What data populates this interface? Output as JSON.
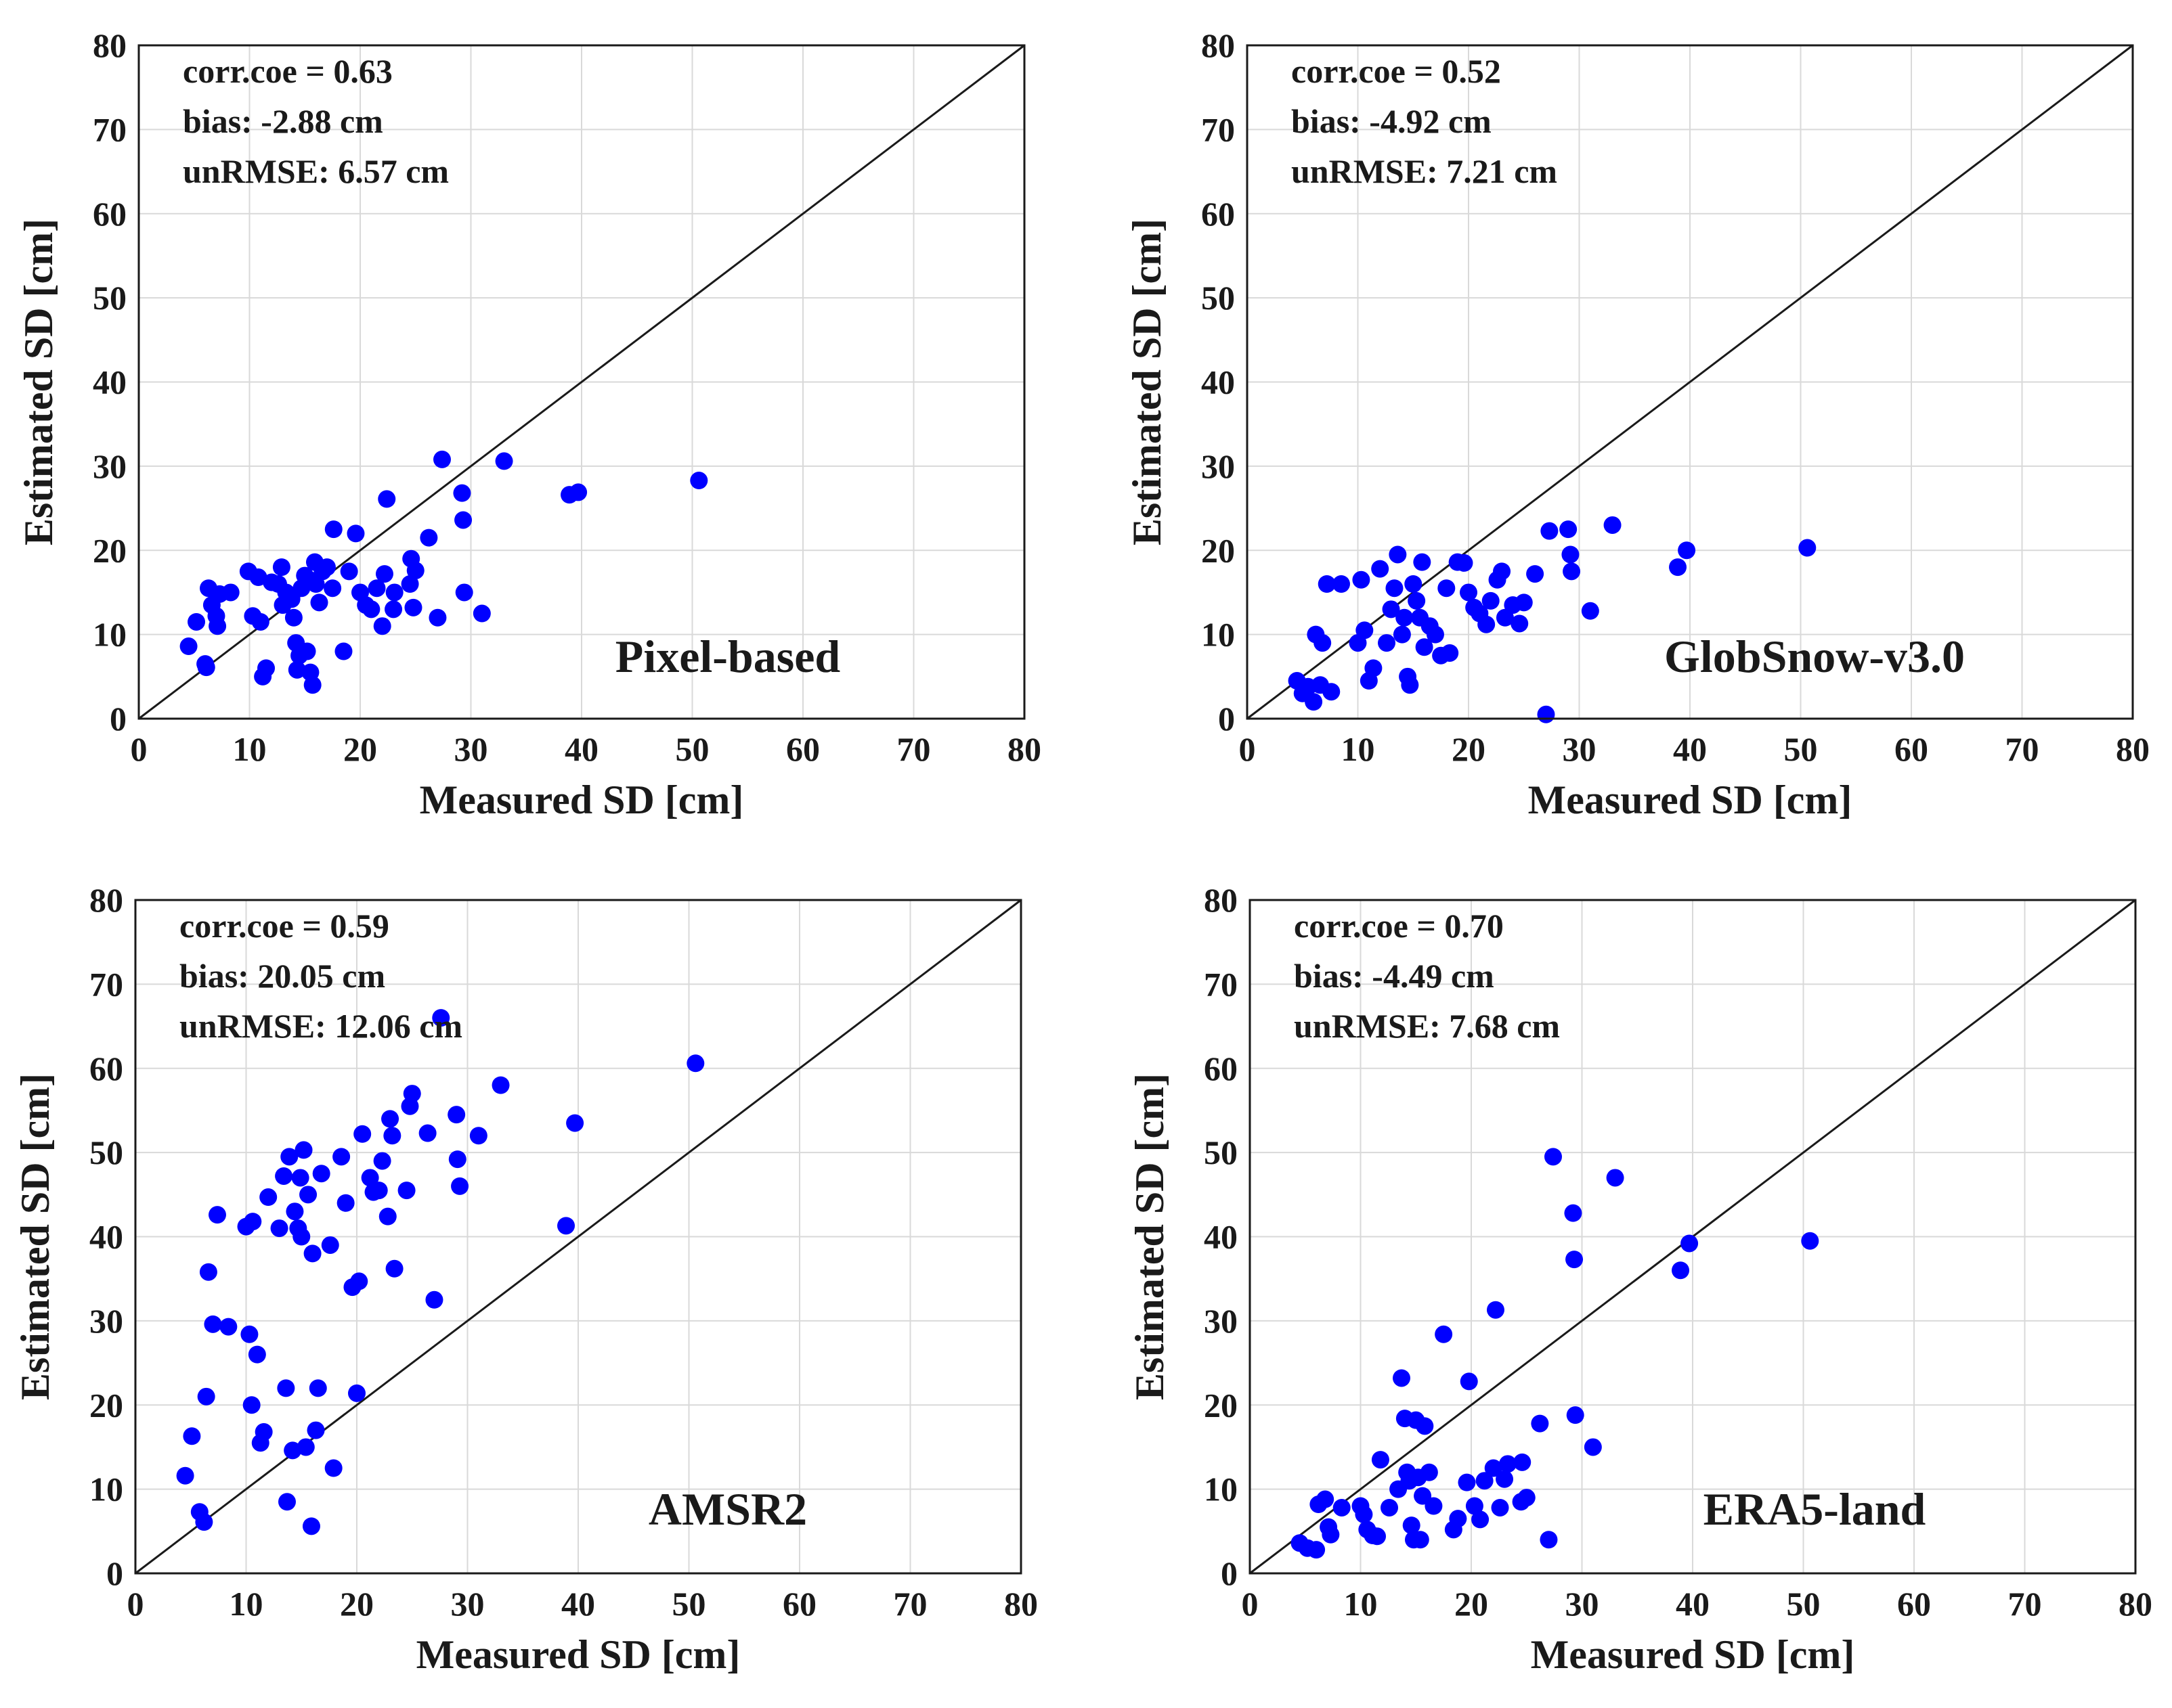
{
  "colors": {
    "points": "#0000ff",
    "line": "#1a1a1a",
    "grid": "#d9d9d9"
  },
  "chart_data": [
    {
      "type": "scatter",
      "title": "",
      "xlabel": "Measured SD [cm]",
      "ylabel": "Estimated SD [cm]",
      "xlim": [
        0,
        80
      ],
      "ylim": [
        0,
        80
      ],
      "xticks": [
        "0",
        "10",
        "20",
        "30",
        "40",
        "50",
        "60",
        "70",
        "80"
      ],
      "yticks": [
        "0",
        "10",
        "20",
        "30",
        "40",
        "50",
        "60",
        "70",
        "80"
      ],
      "grid": true,
      "reference_line": "1:1",
      "annotations": [
        "corr.coe = 0.63",
        "bias: -2.88 cm",
        "unRMSE: 6.57 cm"
      ],
      "label": "Pixel-based",
      "points": [
        [
          4.5,
          8.6
        ],
        [
          5.2,
          11.5
        ],
        [
          6.0,
          6.5
        ],
        [
          6.1,
          6.1
        ],
        [
          6.3,
          15.5
        ],
        [
          6.6,
          13.5
        ],
        [
          7.0,
          12.2
        ],
        [
          7.1,
          11.0
        ],
        [
          7.3,
          14.8
        ],
        [
          8.3,
          15.0
        ],
        [
          9.9,
          17.5
        ],
        [
          10.3,
          12.2
        ],
        [
          10.8,
          16.8
        ],
        [
          11.0,
          11.5
        ],
        [
          11.2,
          5.0
        ],
        [
          11.5,
          6.0
        ],
        [
          12.0,
          16.2
        ],
        [
          12.6,
          16.0
        ],
        [
          12.9,
          18.0
        ],
        [
          13.0,
          13.5
        ],
        [
          13.3,
          15.0
        ],
        [
          13.8,
          14.2
        ],
        [
          14.0,
          12.0
        ],
        [
          14.2,
          9.0
        ],
        [
          14.3,
          5.8
        ],
        [
          14.5,
          7.5
        ],
        [
          14.7,
          15.5
        ],
        [
          15.0,
          17.0
        ],
        [
          15.2,
          8.0
        ],
        [
          15.4,
          16.5
        ],
        [
          15.5,
          5.5
        ],
        [
          15.7,
          4.0
        ],
        [
          15.9,
          18.6
        ],
        [
          16.0,
          16.0
        ],
        [
          16.3,
          13.8
        ],
        [
          16.6,
          17.5
        ],
        [
          17.0,
          18.0
        ],
        [
          17.5,
          15.5
        ],
        [
          17.6,
          22.5
        ],
        [
          18.5,
          8.0
        ],
        [
          19.0,
          17.5
        ],
        [
          19.6,
          22.0
        ],
        [
          20.0,
          15.0
        ],
        [
          20.5,
          13.5
        ],
        [
          21.0,
          13.0
        ],
        [
          21.5,
          15.5
        ],
        [
          22.0,
          11.0
        ],
        [
          22.2,
          17.2
        ],
        [
          22.4,
          26.1
        ],
        [
          23.0,
          13.0
        ],
        [
          23.1,
          15.0
        ],
        [
          24.5,
          16.0
        ],
        [
          24.6,
          19.0
        ],
        [
          24.8,
          13.2
        ],
        [
          25.0,
          17.6
        ],
        [
          26.2,
          21.5
        ],
        [
          27.0,
          12.0
        ],
        [
          27.4,
          30.8
        ],
        [
          29.2,
          26.8
        ],
        [
          29.3,
          23.6
        ],
        [
          29.4,
          15.0
        ],
        [
          31.0,
          12.5
        ],
        [
          33.0,
          30.6
        ],
        [
          38.9,
          26.6
        ],
        [
          39.7,
          26.9
        ],
        [
          50.6,
          28.3
        ]
      ]
    },
    {
      "type": "scatter",
      "title": "",
      "xlabel": "Measured SD [cm]",
      "ylabel": "Estimated SD [cm]",
      "xlim": [
        0,
        80
      ],
      "ylim": [
        0,
        80
      ],
      "xticks": [
        "0",
        "10",
        "20",
        "30",
        "40",
        "50",
        "60",
        "70",
        "80"
      ],
      "yticks": [
        "0",
        "10",
        "20",
        "30",
        "40",
        "50",
        "60",
        "70",
        "80"
      ],
      "grid": true,
      "reference_line": "1:1",
      "annotations": [
        "corr.coe = 0.52",
        "bias: -4.92 cm",
        "unRMSE: 7.21 cm"
      ],
      "label": "GlobSnow-v3.0",
      "points": [
        [
          4.5,
          4.5
        ],
        [
          5.0,
          3.0
        ],
        [
          5.5,
          3.8
        ],
        [
          6.0,
          2.0
        ],
        [
          6.2,
          10.0
        ],
        [
          6.6,
          4.0
        ],
        [
          6.8,
          9.0
        ],
        [
          7.2,
          16.0
        ],
        [
          7.6,
          3.2
        ],
        [
          8.5,
          16.0
        ],
        [
          10.0,
          9.0
        ],
        [
          10.3,
          16.5
        ],
        [
          10.6,
          10.5
        ],
        [
          11.0,
          4.5
        ],
        [
          11.4,
          6.0
        ],
        [
          12.0,
          17.8
        ],
        [
          12.6,
          9.0
        ],
        [
          13.0,
          13.0
        ],
        [
          13.3,
          15.5
        ],
        [
          13.6,
          19.5
        ],
        [
          14.0,
          10.0
        ],
        [
          14.2,
          12.0
        ],
        [
          14.5,
          5.0
        ],
        [
          14.7,
          4.0
        ],
        [
          15.0,
          16.0
        ],
        [
          15.3,
          14.0
        ],
        [
          15.6,
          12.0
        ],
        [
          15.8,
          18.6
        ],
        [
          16.0,
          8.5
        ],
        [
          16.5,
          11.0
        ],
        [
          17.0,
          10.0
        ],
        [
          17.5,
          7.5
        ],
        [
          18.0,
          15.5
        ],
        [
          18.3,
          7.8
        ],
        [
          19.0,
          18.6
        ],
        [
          19.6,
          18.5
        ],
        [
          20.0,
          15.0
        ],
        [
          20.5,
          13.2
        ],
        [
          21.0,
          12.5
        ],
        [
          21.6,
          11.2
        ],
        [
          22.0,
          14.0
        ],
        [
          22.6,
          16.5
        ],
        [
          23.0,
          17.5
        ],
        [
          23.3,
          12.0
        ],
        [
          24.0,
          13.5
        ],
        [
          24.6,
          11.3
        ],
        [
          25.0,
          13.8
        ],
        [
          26.0,
          17.2
        ],
        [
          27.0,
          0.5
        ],
        [
          27.3,
          22.3
        ],
        [
          29.0,
          22.5
        ],
        [
          29.2,
          19.5
        ],
        [
          29.3,
          17.5
        ],
        [
          31.0,
          12.8
        ],
        [
          33.0,
          23.0
        ],
        [
          38.9,
          18.0
        ],
        [
          39.7,
          20.0
        ],
        [
          50.6,
          20.3
        ]
      ]
    },
    {
      "type": "scatter",
      "title": "",
      "xlabel": "Measured SD [cm]",
      "ylabel": "Estimated SD [cm]",
      "xlim": [
        0,
        80
      ],
      "ylim": [
        0,
        80
      ],
      "xticks": [
        "0",
        "10",
        "20",
        "30",
        "40",
        "50",
        "60",
        "70",
        "80"
      ],
      "yticks": [
        "0",
        "10",
        "20",
        "30",
        "40",
        "50",
        "60",
        "70",
        "80"
      ],
      "grid": true,
      "reference_line": "1:1",
      "annotations": [
        "corr.coe = 0.59",
        "bias: 20.05 cm",
        "unRMSE: 12.06 cm"
      ],
      "label": "AMSR2",
      "points": [
        [
          4.5,
          11.6
        ],
        [
          5.1,
          16.3
        ],
        [
          5.8,
          7.3
        ],
        [
          6.2,
          6.1
        ],
        [
          6.4,
          21.0
        ],
        [
          6.6,
          35.8
        ],
        [
          7.0,
          29.6
        ],
        [
          7.4,
          42.6
        ],
        [
          8.4,
          29.3
        ],
        [
          10.0,
          41.2
        ],
        [
          10.3,
          28.4
        ],
        [
          10.5,
          20.0
        ],
        [
          10.6,
          41.8
        ],
        [
          11.0,
          26.0
        ],
        [
          11.3,
          15.5
        ],
        [
          11.6,
          16.8
        ],
        [
          12.0,
          44.7
        ],
        [
          13.0,
          41.0
        ],
        [
          13.4,
          47.2
        ],
        [
          13.6,
          22.0
        ],
        [
          13.7,
          8.5
        ],
        [
          13.9,
          49.5
        ],
        [
          14.2,
          14.6
        ],
        [
          14.4,
          43.0
        ],
        [
          14.7,
          41.0
        ],
        [
          14.9,
          47.0
        ],
        [
          15.0,
          40.0
        ],
        [
          15.2,
          50.3
        ],
        [
          15.4,
          15.0
        ],
        [
          15.6,
          45.0
        ],
        [
          15.9,
          5.6
        ],
        [
          16.0,
          38.0
        ],
        [
          16.3,
          17.0
        ],
        [
          16.5,
          22.0
        ],
        [
          16.8,
          47.5
        ],
        [
          17.6,
          39.0
        ],
        [
          17.9,
          12.5
        ],
        [
          18.6,
          49.5
        ],
        [
          19.0,
          44.0
        ],
        [
          19.6,
          34.0
        ],
        [
          20.0,
          21.4
        ],
        [
          20.2,
          34.7
        ],
        [
          20.5,
          52.2
        ],
        [
          21.2,
          47.0
        ],
        [
          21.5,
          45.3
        ],
        [
          22.0,
          45.5
        ],
        [
          22.3,
          49.0
        ],
        [
          22.8,
          42.4
        ],
        [
          23.0,
          54.0
        ],
        [
          23.2,
          52.0
        ],
        [
          23.4,
          36.2
        ],
        [
          24.5,
          45.5
        ],
        [
          24.8,
          55.5
        ],
        [
          25.0,
          57.0
        ],
        [
          26.4,
          52.3
        ],
        [
          27.0,
          32.5
        ],
        [
          27.6,
          66.0
        ],
        [
          29.0,
          54.5
        ],
        [
          29.1,
          49.2
        ],
        [
          29.3,
          46.0
        ],
        [
          31.0,
          52.0
        ],
        [
          33.0,
          58.0
        ],
        [
          38.9,
          41.3
        ],
        [
          39.7,
          53.5
        ],
        [
          50.6,
          60.6
        ]
      ]
    },
    {
      "type": "scatter",
      "title": "",
      "xlabel": "Measured SD [cm]",
      "ylabel": "Estimated SD [cm]",
      "xlim": [
        0,
        80
      ],
      "ylim": [
        0,
        80
      ],
      "xticks": [
        "0",
        "10",
        "20",
        "30",
        "40",
        "50",
        "60",
        "70",
        "80"
      ],
      "yticks": [
        "0",
        "10",
        "20",
        "30",
        "40",
        "50",
        "60",
        "70",
        "80"
      ],
      "grid": true,
      "reference_line": "1:1",
      "annotations": [
        "corr.coe = 0.70",
        "bias: -4.49 cm",
        "unRMSE: 7.68 cm"
      ],
      "label": "ERA5-land",
      "points": [
        [
          4.5,
          3.6
        ],
        [
          5.2,
          3.0
        ],
        [
          6.0,
          2.8
        ],
        [
          6.2,
          8.2
        ],
        [
          6.8,
          8.8
        ],
        [
          7.1,
          5.5
        ],
        [
          7.3,
          4.6
        ],
        [
          8.3,
          7.8
        ],
        [
          10.0,
          8.0
        ],
        [
          10.3,
          7.0
        ],
        [
          10.6,
          5.2
        ],
        [
          11.1,
          4.5
        ],
        [
          11.5,
          4.4
        ],
        [
          11.8,
          13.5
        ],
        [
          12.6,
          7.8
        ],
        [
          13.4,
          10.0
        ],
        [
          13.7,
          23.2
        ],
        [
          14.0,
          18.4
        ],
        [
          14.2,
          12.0
        ],
        [
          14.4,
          11.0
        ],
        [
          14.6,
          5.7
        ],
        [
          14.8,
          4.0
        ],
        [
          15.0,
          18.2
        ],
        [
          15.2,
          11.4
        ],
        [
          15.4,
          4.0
        ],
        [
          15.6,
          9.2
        ],
        [
          15.8,
          17.5
        ],
        [
          16.2,
          12.0
        ],
        [
          16.6,
          8.0
        ],
        [
          17.5,
          28.4
        ],
        [
          18.4,
          5.2
        ],
        [
          18.8,
          6.5
        ],
        [
          19.6,
          10.8
        ],
        [
          19.8,
          22.8
        ],
        [
          20.3,
          8.0
        ],
        [
          20.8,
          6.4
        ],
        [
          21.2,
          11.0
        ],
        [
          22.0,
          12.5
        ],
        [
          22.2,
          31.3
        ],
        [
          22.6,
          7.8
        ],
        [
          23.0,
          11.2
        ],
        [
          23.3,
          13.0
        ],
        [
          24.5,
          8.5
        ],
        [
          24.6,
          13.2
        ],
        [
          25.0,
          9.0
        ],
        [
          26.2,
          17.8
        ],
        [
          27.0,
          4.0
        ],
        [
          27.4,
          49.5
        ],
        [
          29.2,
          42.8
        ],
        [
          29.3,
          37.3
        ],
        [
          29.4,
          18.8
        ],
        [
          31.0,
          15.0
        ],
        [
          33.0,
          47.0
        ],
        [
          38.9,
          36.0
        ],
        [
          39.7,
          39.2
        ],
        [
          50.6,
          39.5
        ]
      ]
    }
  ]
}
